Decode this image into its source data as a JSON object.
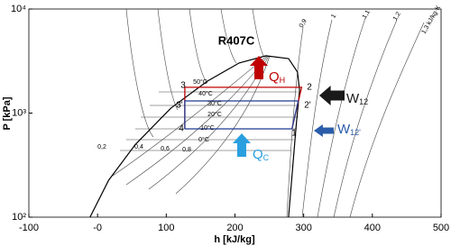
{
  "chart_data": {
    "type": "ph-diagram",
    "title": "R407C",
    "x_label": "h [kJ/kg]",
    "y_label": "P [kPa]",
    "xlim": [
      -100,
      500
    ],
    "ylim": [
      100,
      10000
    ],
    "log_y": true,
    "xticks": [
      -100,
      {
        "value": 0,
        "label": "-0"
      },
      100,
      200,
      300,
      400,
      500
    ],
    "yticks": [
      {
        "value": 100,
        "label": "10²"
      },
      {
        "value": 1000,
        "label": "10³"
      },
      {
        "value": 10000,
        "label": "10⁴"
      }
    ],
    "series": [
      {
        "color": "#000000",
        "x": [
          -11,
          16,
          55,
          107,
          160,
          206,
          245,
          278,
          291,
          294,
          289,
          278
        ],
        "values": [
          100,
          226,
          500,
          1120,
          2030,
          3030,
          3550,
          3340,
          2480,
          1660,
          748,
          100
        ]
      },
      {
        "color": "#c00000",
        "x": [
          127,
          127,
          297,
          283
        ],
        "values": [
          705,
          1770,
          1770,
          705
        ]
      },
      {
        "color": "#1f3a93",
        "x": [
          127,
          127,
          292,
          283,
          127
        ],
        "values": [
          705,
          1310,
          1310,
          705,
          705
        ]
      }
    ],
    "point_labels": [
      "1",
      "2",
      "2'",
      "3",
      "3'",
      "4"
    ],
    "isotherm_labels": [
      "50°C",
      "40°C",
      "30°C",
      "20°C",
      "10°C",
      "0°C"
    ],
    "quality_labels": [
      "0,2",
      "0,4",
      "0,6",
      "0,8"
    ],
    "isentrope_labels": [
      "0,9",
      "1",
      "1,1",
      "1,2",
      "1,3 kJ/kg·K"
    ],
    "heat_labels": [
      {
        "main": "Q",
        "sub": "H",
        "color": "#c00000"
      },
      {
        "main": "Q",
        "sub": "C",
        "color": "#2a9fe0"
      }
    ],
    "work_labels": [
      {
        "main": "W",
        "sub": "12",
        "color": "#1a1a1a"
      },
      {
        "main": "W",
        "sub": "12'",
        "color": "#2a5caa"
      }
    ]
  }
}
